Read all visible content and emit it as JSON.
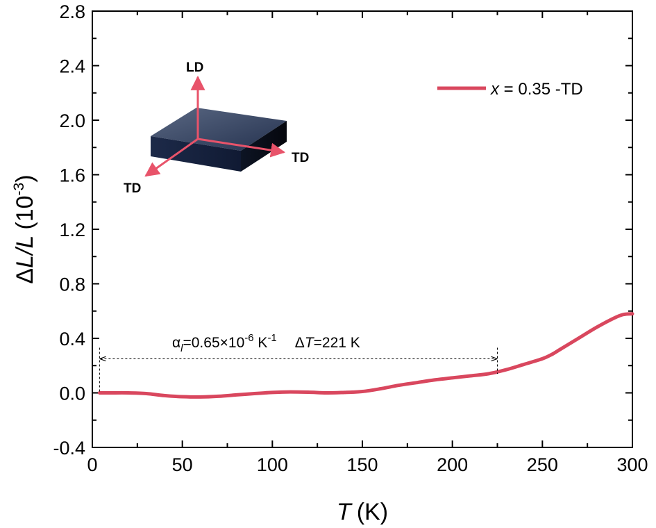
{
  "chart_data": {
    "type": "line",
    "title": "",
    "xlabel": {
      "symbol": "T",
      "unit": "(K)"
    },
    "ylabel": {
      "delta": "Δ",
      "symbol": "L/L",
      "unit_open": "(10",
      "unit_exp": "-3",
      "unit_close": ")"
    },
    "xlim": [
      0,
      300
    ],
    "ylim": [
      -0.4,
      2.8
    ],
    "xticks": [
      0,
      50,
      100,
      150,
      200,
      250,
      300
    ],
    "xtick_labels": [
      "0",
      "50",
      "100",
      "150",
      "200",
      "250",
      "300"
    ],
    "yticks": [
      -0.4,
      0.0,
      0.4,
      0.8,
      1.2,
      1.6,
      2.0,
      2.4,
      2.8
    ],
    "ytick_labels": [
      "-0.4",
      "0.0",
      "0.4",
      "0.8",
      "1.2",
      "1.6",
      "2.0",
      "2.4",
      "2.8"
    ],
    "grid": false,
    "legend_position": "top-right",
    "series": [
      {
        "name": "x = 0.35 -TD",
        "legend_symbol": "x",
        "legend_text": " = 0.35 -TD",
        "color": "#d9475e",
        "x": [
          4,
          10,
          20,
          30,
          40,
          50,
          60,
          70,
          80,
          90,
          100,
          110,
          120,
          130,
          140,
          150,
          160,
          170,
          180,
          190,
          200,
          210,
          220,
          230,
          240,
          250,
          255,
          260,
          270,
          280,
          290,
          295,
          300
        ],
        "y": [
          0.0,
          0.0,
          0.0,
          -0.005,
          -0.02,
          -0.028,
          -0.03,
          -0.025,
          -0.015,
          -0.005,
          0.003,
          0.007,
          0.005,
          0.0,
          0.003,
          0.01,
          0.03,
          0.055,
          0.075,
          0.095,
          0.11,
          0.125,
          0.14,
          0.17,
          0.21,
          0.25,
          0.28,
          0.32,
          0.4,
          0.48,
          0.55,
          0.575,
          0.58
        ]
      }
    ],
    "annotations": [
      {
        "type": "range-arrow",
        "x_start": 4,
        "x_end": 225,
        "y": 0.25,
        "alpha_symbol": "α",
        "alpha_sub": "l",
        "alpha_value": "=0.65×10",
        "alpha_exp": "-6",
        "alpha_unit": " K",
        "alpha_unit_exp": "-1",
        "delta_symbol": "Δ",
        "delta_var": "T",
        "delta_value": "=221 K"
      }
    ],
    "inset": {
      "description": "sample slab with axes",
      "labels": {
        "up": "LD",
        "right": "TD",
        "front": "TD"
      },
      "arrow_color": "#e8536a",
      "slab_color": "#1f2d4a"
    }
  }
}
